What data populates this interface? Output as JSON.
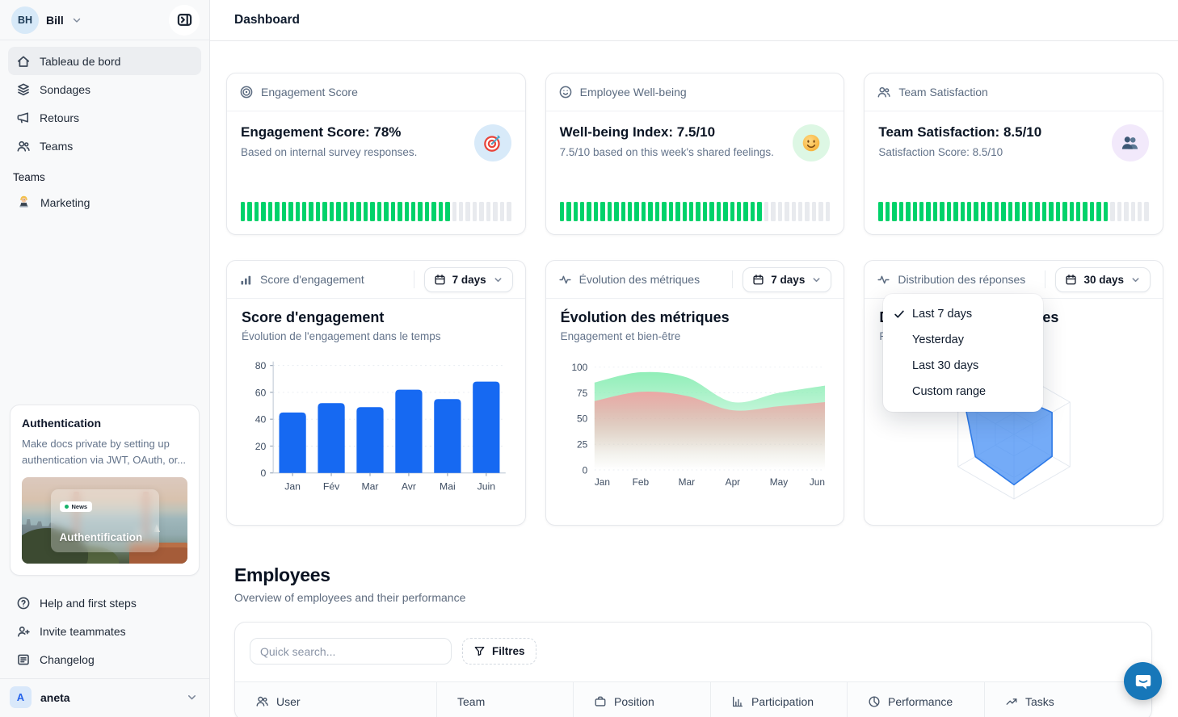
{
  "colors": {
    "accent_blue": "#1669F2",
    "progress_green": "#00D26A",
    "progress_track": "#E8EAEE",
    "area_green": "#8AEDB4",
    "area_red": "#EFA3A3",
    "radar_blue": "#4D94F5",
    "radar_stroke": "#2F7BE8",
    "intercom_blue": "#1777B9"
  },
  "sidebar": {
    "workspace": {
      "initials": "BH",
      "name": "Bill"
    },
    "nav": [
      {
        "label": "Tableau de bord",
        "icon": "home-icon",
        "active": true
      },
      {
        "label": "Sondages",
        "icon": "layers-icon",
        "active": false
      },
      {
        "label": "Retours",
        "icon": "megaphone-icon",
        "active": false
      },
      {
        "label": "Teams",
        "icon": "users-icon",
        "active": false
      }
    ],
    "teams_section": {
      "title": "Teams",
      "items": [
        {
          "label": "Marketing",
          "icon": "technologist-emoji"
        }
      ]
    },
    "promo_card": {
      "title": "Authentication",
      "body": "Make docs private by setting up authentication via JWT, OAuth, or...",
      "badge": "News",
      "image_caption": "Authentification"
    },
    "footer_nav": [
      {
        "label": "Help and first steps",
        "icon": "help-icon"
      },
      {
        "label": "Invite teammates",
        "icon": "user-plus-icon"
      },
      {
        "label": "Changelog",
        "icon": "changelog-icon"
      }
    ],
    "account": {
      "initial": "A",
      "name": "aneta"
    }
  },
  "header": {
    "title": "Dashboard"
  },
  "stat_cards": [
    {
      "header_label": "Engagement Score",
      "title": "Engagement Score: 78%",
      "subtitle": "Based on internal survey responses.",
      "progress_percent": 78,
      "emoji": "target",
      "emoji_bg": "#D8EAF9"
    },
    {
      "header_label": "Employee Well-being",
      "title": "Well-being Index: 7.5/10",
      "subtitle": "7.5/10 based on this week's shared feelings.",
      "progress_percent": 75,
      "emoji": "smiley",
      "emoji_bg": "#DDF7E4"
    },
    {
      "header_label": "Team Satisfaction",
      "title": "Team Satisfaction: 8.5/10",
      "subtitle": "Satisfaction Score: 8.5/10",
      "progress_percent": 85,
      "emoji": "two-people",
      "emoji_bg": "#F2E9FB"
    }
  ],
  "chart_cards": [
    {
      "header_label": "Score d'engagement",
      "range_label": "7 days",
      "title": "Score d'engagement",
      "subtitle": "Évolution de l'engagement dans le temps"
    },
    {
      "header_label": "Évolution des métriques",
      "range_label": "7 days",
      "title": "Évolution des métriques",
      "subtitle": "Engagement et bien-être"
    },
    {
      "header_label": "Distribution des réponses",
      "range_label": "30 days",
      "title": "Distribution des réponses",
      "subtitle": "Répartition par catégorie"
    }
  ],
  "dropdown_menu": {
    "items": [
      {
        "label": "Last 7 days",
        "checked": true
      },
      {
        "label": "Yesterday",
        "checked": false
      },
      {
        "label": "Last 30 days",
        "checked": false
      },
      {
        "label": "Custom range",
        "checked": false
      }
    ]
  },
  "employees": {
    "title": "Employees",
    "subtitle": "Overview of employees and their performance",
    "search_placeholder": "Quick search...",
    "filter_label": "Filtres",
    "columns": [
      {
        "label": "User",
        "icon": "users-icon"
      },
      {
        "label": "Team",
        "icon": ""
      },
      {
        "label": "Position",
        "icon": "briefcase-icon"
      },
      {
        "label": "Participation",
        "icon": "bar-chart-icon"
      },
      {
        "label": "Performance",
        "icon": "pie-chart-icon"
      },
      {
        "label": "Tasks",
        "icon": "trending-up-icon"
      }
    ]
  },
  "chart_data": [
    {
      "id": "engagement_bar",
      "type": "bar",
      "title": "Score d'engagement",
      "subtitle": "Évolution de l'engagement dans le temps",
      "categories": [
        "Jan",
        "Fév",
        "Mar",
        "Avr",
        "Mai",
        "Juin"
      ],
      "values": [
        45,
        52,
        49,
        62,
        55,
        68
      ],
      "ylim": [
        0,
        80
      ],
      "yticks": [
        0,
        20,
        40,
        60,
        80
      ],
      "bar_color": "#1669F2",
      "grid": true,
      "legend": false
    },
    {
      "id": "metrics_area",
      "type": "area",
      "title": "Évolution des métriques",
      "subtitle": "Engagement et bien-être",
      "x": [
        "Jan",
        "Feb",
        "Mar",
        "Apr",
        "May",
        "Jun"
      ],
      "series": [
        {
          "name": "engagement",
          "color": "#8AEDB4",
          "values": [
            85,
            95,
            90,
            66,
            75,
            82
          ]
        },
        {
          "name": "bien-être",
          "color": "#EFA3A3",
          "values": [
            67,
            76,
            72,
            58,
            62,
            66
          ]
        }
      ],
      "ylim": [
        0,
        100
      ],
      "yticks": [
        0,
        25,
        50,
        75,
        100
      ],
      "grid": true,
      "legend": false
    },
    {
      "id": "distribution_radar",
      "type": "radar",
      "title": "Distribution des réponses",
      "subtitle": "Répartition par catégorie",
      "axes_count": 6,
      "values": [
        60,
        68,
        68,
        78,
        69,
        87
      ],
      "max": 100,
      "fill_color": "#4D94F5",
      "stroke_color": "#2F7BE8",
      "grid_color": "#E3E8EF"
    }
  ]
}
